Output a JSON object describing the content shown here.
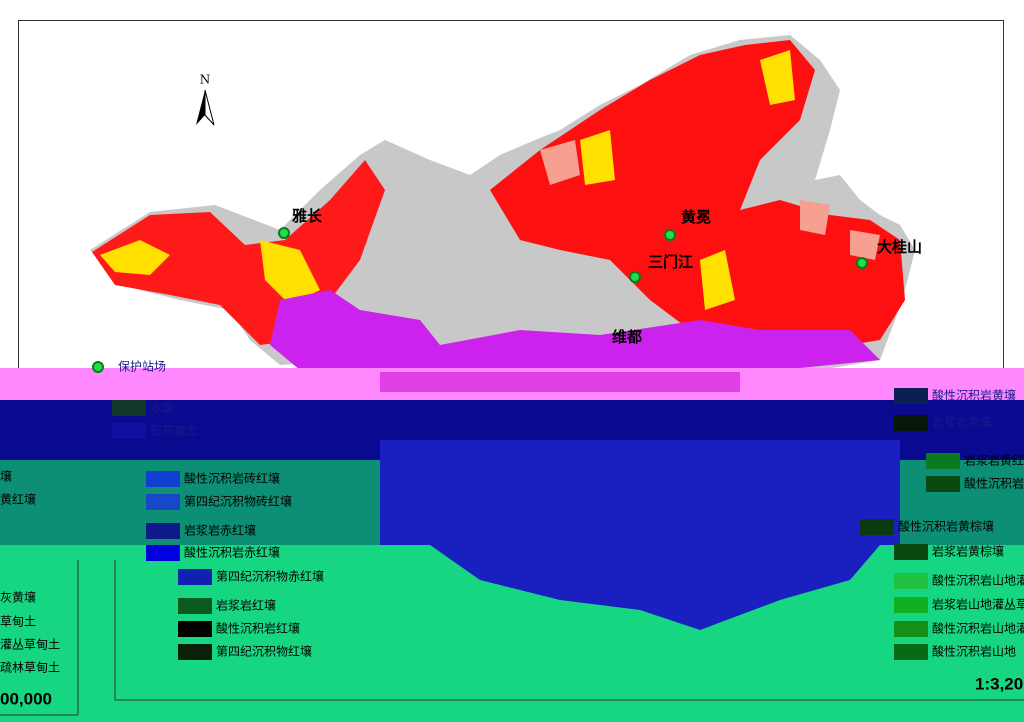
{
  "map": {
    "north": "N",
    "places": [
      "雅长",
      "黄冕",
      "三门江",
      "大桂山",
      "维都"
    ],
    "legend_header": "保护站场",
    "legend_left": [
      "水面",
      "石灰岩土"
    ],
    "legend_middle": [
      "酸性沉积岩砖红壤",
      "第四纪沉积物砖红壤",
      "岩浆岩赤红壤",
      "酸性沉积岩赤红壤",
      "第四纪沉积物赤红壤",
      "岩浆岩红壤",
      "酸性沉积岩红壤",
      "第四纪沉积物红壤"
    ],
    "legend_right": [
      "酸性沉积岩黄壤",
      "岩浆岩黄壤",
      "岩浆岩黄红",
      "酸性沉积岩",
      "酸性沉积岩黄棕壤",
      "岩浆岩黄棕壤",
      "酸性沉积岩山地灌",
      "岩浆岩山地灌丛草",
      "酸性沉积岩山地灌",
      "酸性沉积岩山地"
    ],
    "legend_far_left": [
      "壤",
      "黄红壤",
      "灰黄壤",
      "草甸土",
      "灌丛草甸土",
      "疏林草甸土"
    ],
    "scale_left": "00,000",
    "scale_right": "1:3,20"
  }
}
